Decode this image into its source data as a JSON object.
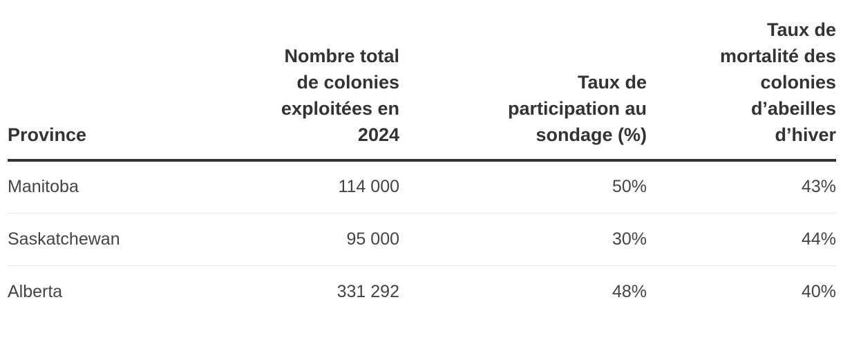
{
  "chart_data": {
    "type": "table",
    "columns": [
      "Province",
      "Nombre total de colonies exploitées en 2024",
      "Taux de participation au sondage (%)",
      "Taux de mortalité des colonies d’abeilles d’hiver"
    ],
    "header_lines": [
      [
        "Province"
      ],
      [
        "Nombre total",
        "de colonies",
        "exploitées en",
        "2024"
      ],
      [
        "Taux de",
        "participation au",
        "sondage (%)"
      ],
      [
        "Taux de",
        "mortalité des",
        "colonies",
        "d’abeilles",
        "d’hiver"
      ]
    ],
    "rows": [
      [
        "Manitoba",
        "114 000",
        "50%",
        "43%"
      ],
      [
        "Saskatchewan",
        "95 000",
        "30%",
        "44%"
      ],
      [
        "Alberta",
        "331 292",
        "48%",
        "40%"
      ]
    ]
  }
}
